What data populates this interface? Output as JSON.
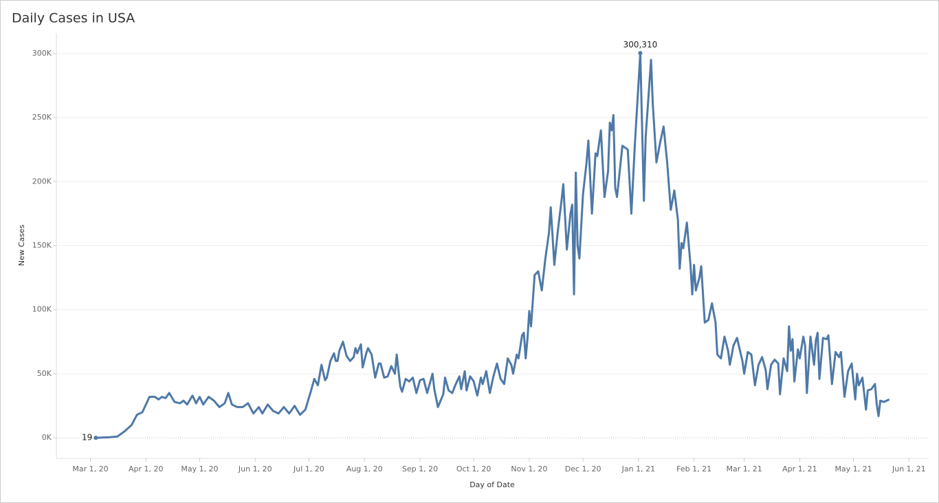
{
  "chart_data": {
    "type": "line",
    "title": "Daily Cases in USA",
    "x_label": "Day of Date",
    "y_label": "New Cases",
    "x": [
      "2020-03-04",
      "2020-03-12",
      "2020-03-16",
      "2020-03-20",
      "2020-03-24",
      "2020-03-27",
      "2020-03-30",
      "2020-04-03",
      "2020-04-06",
      "2020-04-08",
      "2020-04-10",
      "2020-04-12",
      "2020-04-14",
      "2020-04-17",
      "2020-04-20",
      "2020-04-22",
      "2020-04-24",
      "2020-04-27",
      "2020-04-29",
      "2020-05-01",
      "2020-05-03",
      "2020-05-06",
      "2020-05-09",
      "2020-05-12",
      "2020-05-15",
      "2020-05-17",
      "2020-05-19",
      "2020-05-22",
      "2020-05-25",
      "2020-05-28",
      "2020-05-31",
      "2020-06-03",
      "2020-06-05",
      "2020-06-08",
      "2020-06-11",
      "2020-06-14",
      "2020-06-17",
      "2020-06-20",
      "2020-06-23",
      "2020-06-26",
      "2020-06-29",
      "2020-07-02",
      "2020-07-04",
      "2020-07-06",
      "2020-07-08",
      "2020-07-10",
      "2020-07-11",
      "2020-07-13",
      "2020-07-15",
      "2020-07-16",
      "2020-07-17",
      "2020-07-18",
      "2020-07-20",
      "2020-07-22",
      "2020-07-24",
      "2020-07-26",
      "2020-07-27",
      "2020-07-28",
      "2020-07-30",
      "2020-07-31",
      "2020-08-02",
      "2020-08-03",
      "2020-08-05",
      "2020-08-07",
      "2020-08-09",
      "2020-08-10",
      "2020-08-12",
      "2020-08-14",
      "2020-08-16",
      "2020-08-18",
      "2020-08-19",
      "2020-08-21",
      "2020-08-22",
      "2020-08-24",
      "2020-08-26",
      "2020-08-28",
      "2020-08-30",
      "2020-08-31",
      "2020-09-01",
      "2020-09-03",
      "2020-09-05",
      "2020-09-08",
      "2020-09-09",
      "2020-09-11",
      "2020-09-14",
      "2020-09-15",
      "2020-09-17",
      "2020-09-19",
      "2020-09-21",
      "2020-09-23",
      "2020-09-24",
      "2020-09-26",
      "2020-09-27",
      "2020-09-29",
      "2020-10-01",
      "2020-10-03",
      "2020-10-05",
      "2020-10-06",
      "2020-10-08",
      "2020-10-10",
      "2020-10-12",
      "2020-10-14",
      "2020-10-16",
      "2020-10-18",
      "2020-10-20",
      "2020-10-22",
      "2020-10-23",
      "2020-10-25",
      "2020-10-26",
      "2020-10-28",
      "2020-10-29",
      "2020-10-30",
      "2020-10-31",
      "2020-11-01",
      "2020-11-02",
      "2020-11-04",
      "2020-11-06",
      "2020-11-08",
      "2020-11-10",
      "2020-11-12",
      "2020-11-13",
      "2020-11-15",
      "2020-11-17",
      "2020-11-19",
      "2020-11-20",
      "2020-11-22",
      "2020-11-24",
      "2020-11-25",
      "2020-11-26",
      "2020-11-27",
      "2020-11-28",
      "2020-11-29",
      "2020-12-01",
      "2020-12-03",
      "2020-12-04",
      "2020-12-06",
      "2020-12-08",
      "2020-12-09",
      "2020-12-11",
      "2020-12-13",
      "2020-12-15",
      "2020-12-16",
      "2020-12-17",
      "2020-12-18",
      "2020-12-19",
      "2020-12-20",
      "2020-12-23",
      "2020-12-26",
      "2020-12-28",
      "2020-12-30",
      "2021-01-02",
      "2021-01-04",
      "2021-01-05",
      "2021-01-08",
      "2021-01-09",
      "2021-01-11",
      "2021-01-13",
      "2021-01-15",
      "2021-01-17",
      "2021-01-19",
      "2021-01-21",
      "2021-01-23",
      "2021-01-24",
      "2021-01-25",
      "2021-01-26",
      "2021-01-28",
      "2021-01-30",
      "2021-01-31",
      "2021-02-01",
      "2021-02-02",
      "2021-02-04",
      "2021-02-05",
      "2021-02-07",
      "2021-02-09",
      "2021-02-11",
      "2021-02-13",
      "2021-02-14",
      "2021-02-16",
      "2021-02-18",
      "2021-02-20",
      "2021-02-21",
      "2021-02-23",
      "2021-02-25",
      "2021-02-28",
      "2021-03-01",
      "2021-03-03",
      "2021-03-05",
      "2021-03-07",
      "2021-03-09",
      "2021-03-11",
      "2021-03-13",
      "2021-03-14",
      "2021-03-16",
      "2021-03-18",
      "2021-03-20",
      "2021-03-21",
      "2021-03-23",
      "2021-03-25",
      "2021-03-26",
      "2021-03-27",
      "2021-03-28",
      "2021-03-29",
      "2021-03-31",
      "2021-04-01",
      "2021-04-03",
      "2021-04-04",
      "2021-04-05",
      "2021-04-07",
      "2021-04-09",
      "2021-04-10",
      "2021-04-11",
      "2021-04-12",
      "2021-04-14",
      "2021-04-16",
      "2021-04-17",
      "2021-04-19",
      "2021-04-21",
      "2021-04-23",
      "2021-04-24",
      "2021-04-26",
      "2021-04-28",
      "2021-04-30",
      "2021-05-02",
      "2021-05-03",
      "2021-05-04",
      "2021-05-06",
      "2021-05-08",
      "2021-05-09",
      "2021-05-11",
      "2021-05-13",
      "2021-05-14",
      "2021-05-15",
      "2021-05-16",
      "2021-05-18",
      "2021-05-21"
    ],
    "values": [
      19,
      500,
      1000,
      5000,
      10000,
      18000,
      20000,
      32000,
      32000,
      30000,
      32000,
      31000,
      35000,
      28000,
      27000,
      29000,
      26000,
      33000,
      27000,
      32000,
      26000,
      32000,
      29000,
      24000,
      27000,
      35000,
      26000,
      24000,
      24000,
      27000,
      19000,
      24000,
      19000,
      26000,
      21000,
      19000,
      24000,
      19000,
      25000,
      18000,
      22000,
      36000,
      46000,
      41000,
      57000,
      45000,
      47000,
      60000,
      66000,
      60000,
      60000,
      68000,
      75000,
      64000,
      60000,
      63000,
      70000,
      66000,
      73000,
      55000,
      66000,
      70000,
      65000,
      47000,
      58000,
      58000,
      47000,
      48000,
      56000,
      50000,
      65000,
      40000,
      36000,
      46000,
      44000,
      47000,
      35000,
      40000,
      45000,
      46000,
      35000,
      50000,
      38000,
      24000,
      34000,
      47000,
      37000,
      35000,
      42000,
      48000,
      38000,
      52000,
      37000,
      48000,
      44000,
      33000,
      47000,
      42000,
      52000,
      35000,
      48000,
      58000,
      46000,
      42000,
      62000,
      57000,
      50000,
      65000,
      62000,
      80000,
      82000,
      62000,
      77000,
      99000,
      87000,
      127000,
      130000,
      115000,
      140000,
      160000,
      180000,
      135000,
      162000,
      185000,
      198000,
      147000,
      175000,
      182000,
      112000,
      207000,
      150000,
      140000,
      190000,
      215000,
      232000,
      175000,
      222000,
      220000,
      240000,
      188000,
      208000,
      246000,
      240000,
      252000,
      195000,
      188000,
      228000,
      225000,
      175000,
      230000,
      300310,
      185000,
      235000,
      295000,
      260000,
      215000,
      230000,
      243000,
      215000,
      178000,
      193000,
      170000,
      132000,
      152000,
      148000,
      168000,
      135000,
      112000,
      135000,
      115000,
      125000,
      134000,
      90000,
      92000,
      105000,
      90000,
      65000,
      62000,
      79000,
      68000,
      57000,
      72000,
      78000,
      60000,
      50000,
      67000,
      65000,
      41000,
      57000,
      63000,
      53000,
      38000,
      57000,
      61000,
      58000,
      34000,
      62000,
      52000,
      87000,
      68000,
      77000,
      44000,
      69000,
      62000,
      79000,
      72000,
      35000,
      79000,
      57000,
      76000,
      82000,
      46000,
      78000,
      77000,
      80000,
      42000,
      67000,
      63000,
      67000,
      32000,
      52000,
      58000,
      30000,
      50000,
      41000,
      47000,
      22000,
      37000,
      38000,
      42000,
      26000,
      17000,
      29000,
      28000,
      30000
    ],
    "value_labels": [
      "19",
      null,
      null,
      null,
      null,
      null,
      null,
      null,
      null,
      null,
      null,
      null,
      null,
      null,
      null,
      null,
      null,
      null,
      null,
      null,
      null,
      null,
      null,
      null,
      null,
      null,
      null,
      null,
      null,
      null,
      null,
      null,
      null,
      null,
      null,
      null,
      null,
      null,
      null,
      null,
      null,
      null,
      null,
      null,
      null,
      null,
      null,
      null,
      null,
      null,
      null,
      null,
      null,
      null,
      null,
      null,
      null,
      null,
      null,
      null,
      null,
      null,
      null,
      null,
      null,
      null,
      null,
      null,
      null,
      null,
      null,
      null,
      null,
      null,
      null,
      null,
      null,
      null,
      null,
      null,
      null,
      null,
      null,
      null,
      null,
      null,
      null,
      null,
      null,
      null,
      null,
      null,
      null,
      null,
      null,
      null,
      null,
      null,
      null,
      null,
      null,
      null,
      null,
      null,
      null,
      null,
      null,
      null,
      null,
      null,
      null,
      null,
      null,
      null,
      null,
      null,
      null,
      null,
      null,
      null,
      null,
      null,
      null,
      null,
      null,
      null,
      null,
      null,
      null,
      null,
      null,
      null,
      null,
      null,
      null,
      null,
      null,
      null,
      null,
      null,
      null,
      null,
      null,
      null,
      null,
      null,
      null,
      null,
      null,
      null,
      "300,310",
      null,
      null,
      null,
      null,
      null,
      null,
      null,
      null,
      null,
      null,
      null,
      null,
      null,
      null,
      null,
      null,
      null,
      null,
      null,
      null,
      null,
      null,
      null,
      null,
      null,
      null,
      null,
      null,
      null,
      null,
      null,
      null,
      null,
      null,
      null,
      null,
      null,
      null,
      null,
      null,
      null,
      null,
      null,
      null,
      null,
      null,
      null,
      null,
      null,
      null,
      null,
      null,
      null,
      null,
      null,
      null,
      null,
      null,
      null,
      null,
      null,
      null,
      null,
      null,
      null,
      null,
      null,
      null,
      null,
      null,
      null,
      null,
      null,
      null,
      null,
      null,
      null,
      null,
      null,
      null,
      null,
      null,
      null,
      null
    ],
    "color": "#4e79a7",
    "xlim": [
      "2020-02-11",
      "2021-06-12"
    ],
    "xticks": [
      {
        "value": "2020-03-01",
        "label": "Mar 1, 20"
      },
      {
        "value": "2020-04-01",
        "label": "Apr 1, 20"
      },
      {
        "value": "2020-05-01",
        "label": "May 1, 20"
      },
      {
        "value": "2020-06-01",
        "label": "Jun 1, 20"
      },
      {
        "value": "2020-07-01",
        "label": "Jul 1, 20"
      },
      {
        "value": "2020-08-01",
        "label": "Aug 1, 20"
      },
      {
        "value": "2020-09-01",
        "label": "Sep 1, 20"
      },
      {
        "value": "2020-10-01",
        "label": "Oct 1, 20"
      },
      {
        "value": "2020-11-01",
        "label": "Nov 1, 20"
      },
      {
        "value": "2020-12-01",
        "label": "Dec 1, 20"
      },
      {
        "value": "2021-01-01",
        "label": "Jan 1, 21"
      },
      {
        "value": "2021-02-01",
        "label": "Feb 1, 21"
      },
      {
        "value": "2021-03-01",
        "label": "Mar 1, 21"
      },
      {
        "value": "2021-04-01",
        "label": "Apr 1, 21"
      },
      {
        "value": "2021-05-01",
        "label": "May 1, 21"
      },
      {
        "value": "2021-06-01",
        "label": "Jun 1, 21"
      }
    ],
    "ylim": [
      -16000,
      316000
    ],
    "yticks": [
      {
        "value": 0,
        "label": "0K"
      },
      {
        "value": 50000,
        "label": "50K"
      },
      {
        "value": 100000,
        "label": "100K"
      },
      {
        "value": 150000,
        "label": "150K"
      },
      {
        "value": 200000,
        "label": "200K"
      },
      {
        "value": 250000,
        "label": "250K"
      },
      {
        "value": 300000,
        "label": "300K"
      }
    ],
    "grid": true
  }
}
